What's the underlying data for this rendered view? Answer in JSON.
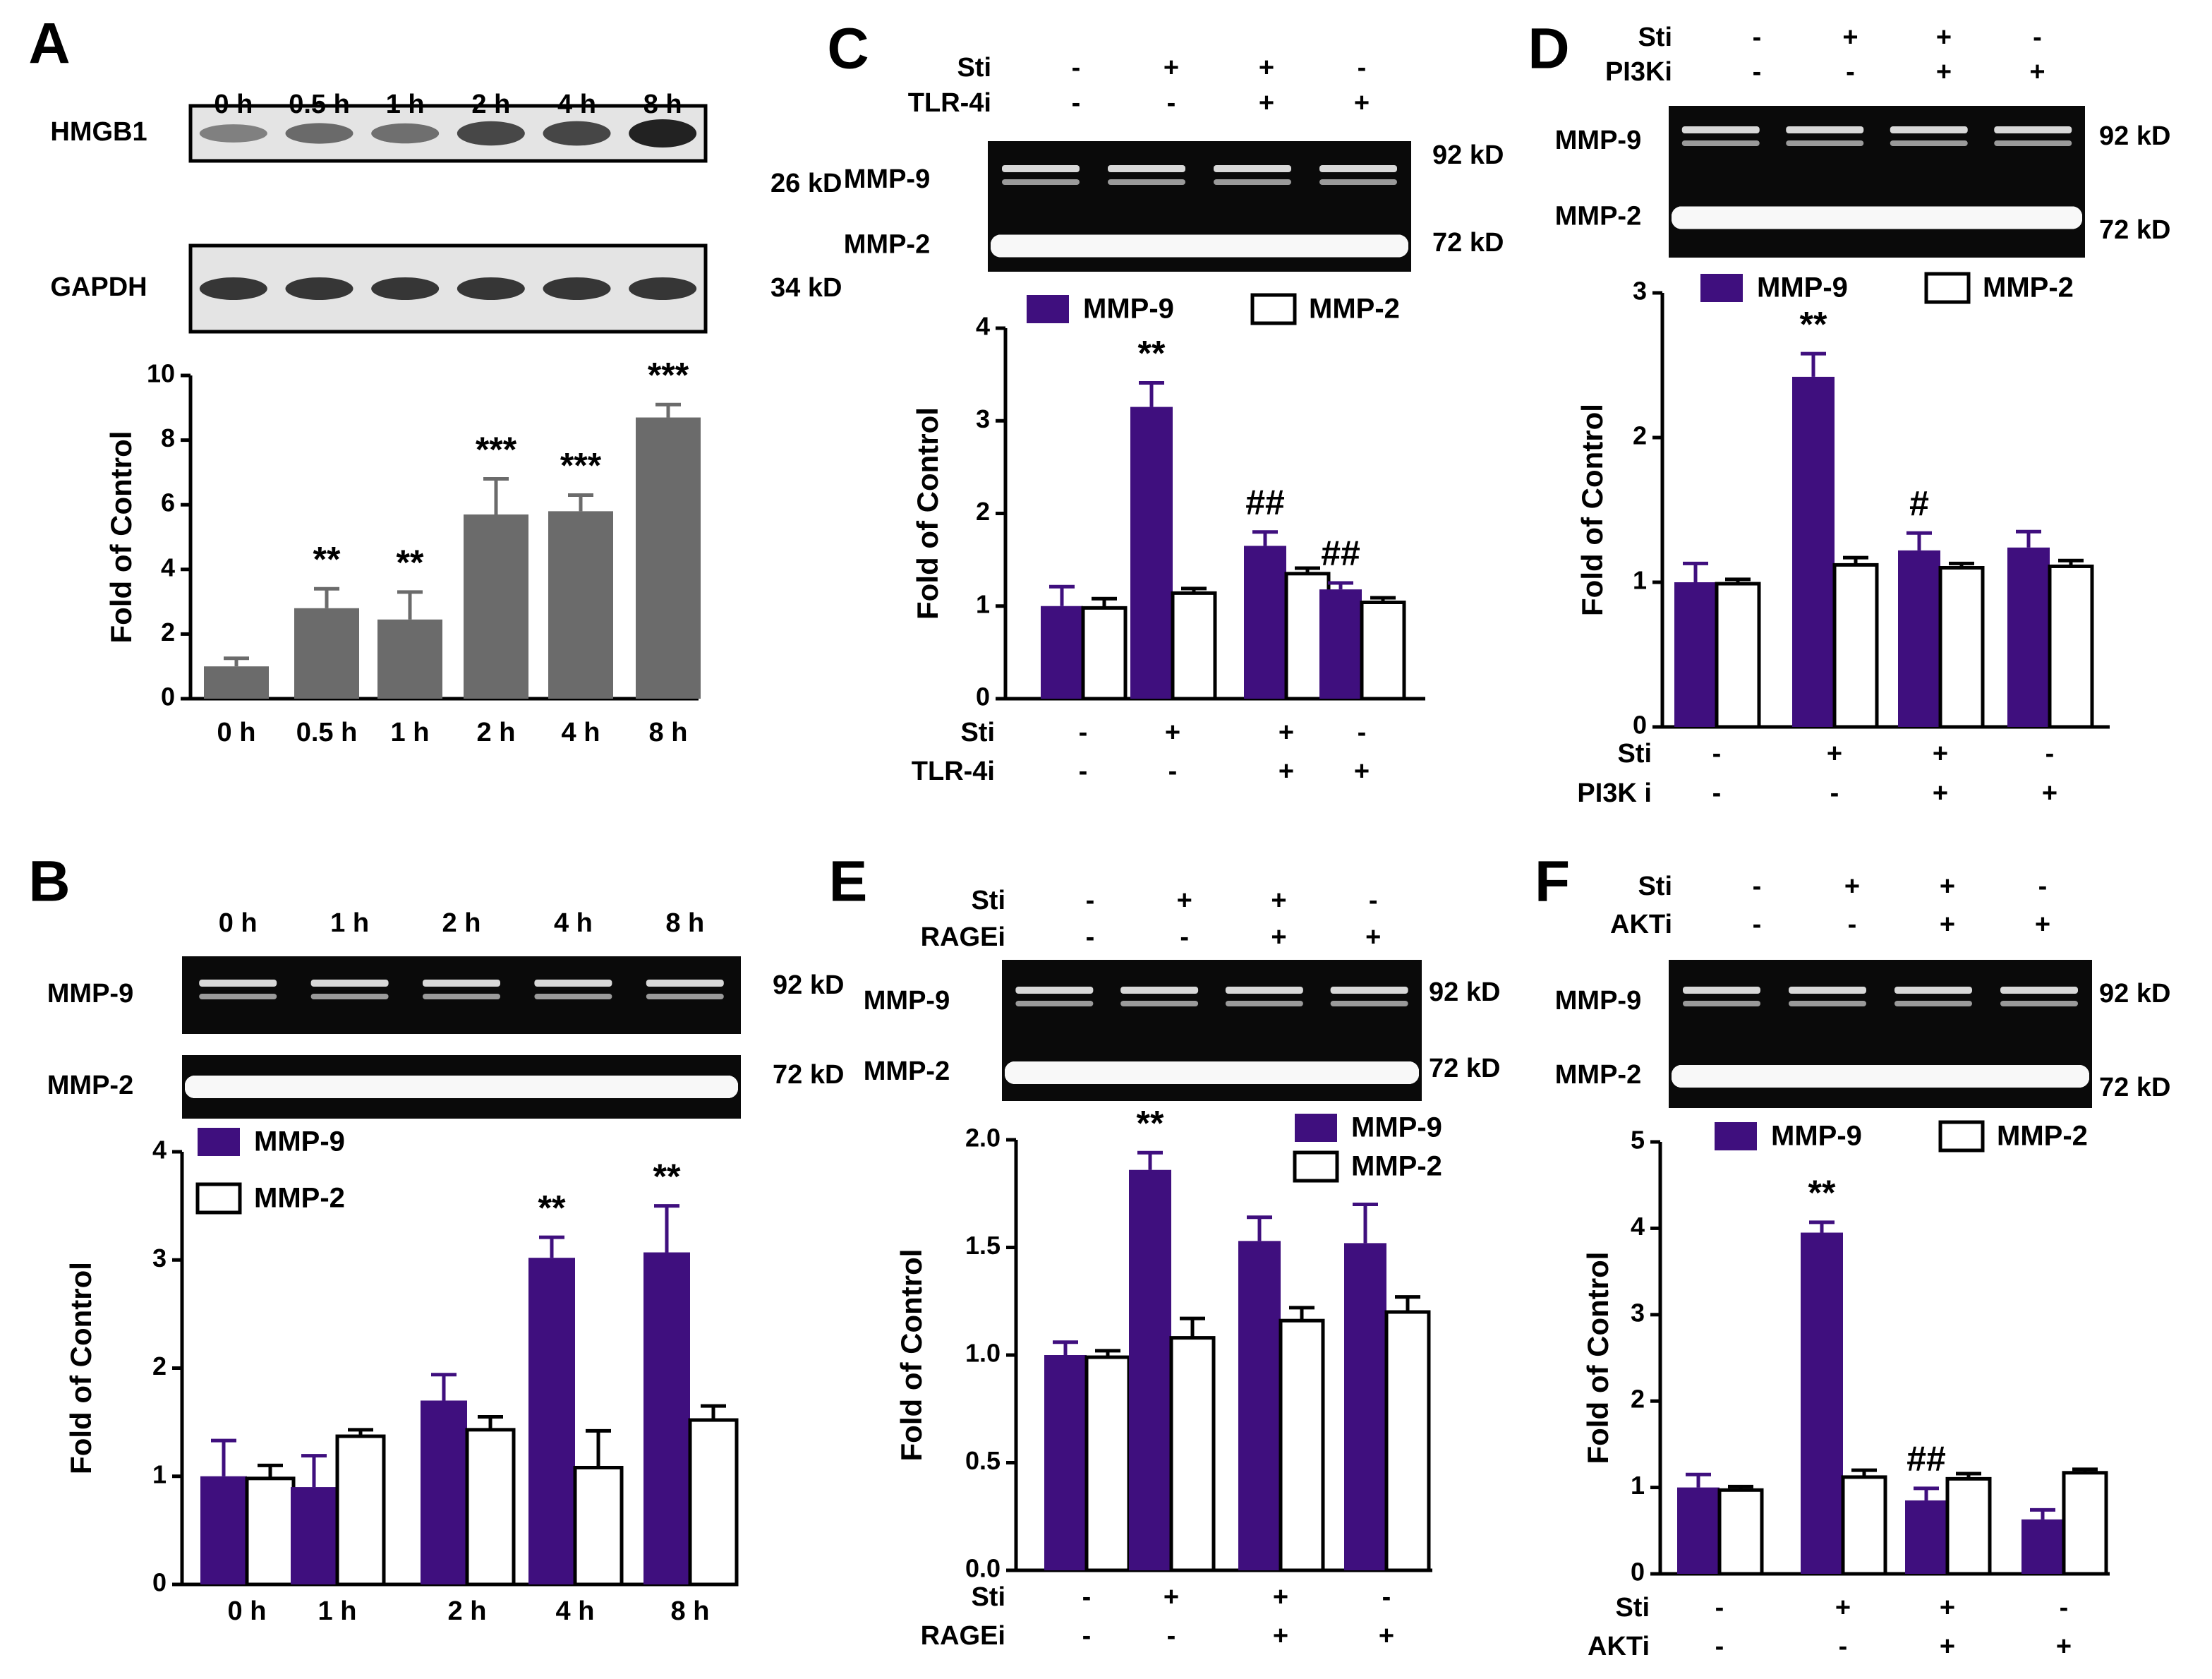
{
  "colors": {
    "mmp9": "#3f0f7e",
    "mmp2": "#ffffff",
    "hmgb1_bar": "#6b6b6b",
    "axis": "#000000"
  },
  "chart_data": [
    {
      "id": "A",
      "panel_label": "A",
      "type": "bar",
      "ylabel": "Fold of Control",
      "ylim": [
        0,
        10
      ],
      "yticks": [
        "0",
        "2",
        "4",
        "6",
        "8",
        "10"
      ],
      "categories": [
        "0 h",
        "0.5 h",
        "1 h",
        "2 h",
        "4 h",
        "8 h"
      ],
      "series": [
        {
          "values": [
            1.0,
            2.8,
            2.45,
            5.7,
            5.8,
            8.7
          ],
          "errors": [
            0.25,
            0.6,
            0.85,
            1.1,
            0.5,
            0.4
          ],
          "color": "hmgb1_bar"
        }
      ],
      "annotations": [
        "",
        "**",
        "**",
        "***",
        "***",
        "***"
      ],
      "blot": {
        "lanes": [
          "0 h",
          "0.5 h",
          "1 h",
          "2 h",
          "4 h",
          "8 h"
        ],
        "rows": [
          {
            "label": "HMGB1",
            "size": "26 kD"
          },
          {
            "label": "GAPDH",
            "size": "34 kD"
          }
        ]
      }
    },
    {
      "id": "B",
      "panel_label": "B",
      "type": "bar",
      "ylabel": "Fold of Control",
      "ylim": [
        0,
        4
      ],
      "yticks": [
        "0",
        "1",
        "2",
        "3",
        "4"
      ],
      "categories": [
        "0 h",
        "1 h",
        "2 h",
        "4 h",
        "8 h"
      ],
      "legend": [
        "MMP-9",
        "MMP-2"
      ],
      "series": [
        {
          "name": "MMP-9",
          "values": [
            1.0,
            0.9,
            1.7,
            3.02,
            3.07
          ],
          "errors": [
            0.33,
            0.29,
            0.24,
            0.19,
            0.43
          ]
        },
        {
          "name": "MMP-2",
          "values": [
            0.98,
            1.37,
            1.43,
            1.08,
            1.52
          ],
          "errors": [
            0.12,
            0.06,
            0.12,
            0.34,
            0.13
          ]
        }
      ],
      "annotations": [
        "",
        "",
        "",
        "**",
        "**"
      ],
      "blot": {
        "lanes": [
          "0 h",
          "1 h",
          "2 h",
          "4 h",
          "8 h"
        ],
        "rows": [
          {
            "label": "MMP-9",
            "size": "92 kD"
          },
          {
            "label": "MMP-2",
            "size": "72 kD"
          }
        ]
      }
    },
    {
      "id": "C",
      "panel_label": "C",
      "type": "bar",
      "ylabel": "Fold of Control",
      "ylim": [
        0,
        4
      ],
      "yticks": [
        "0",
        "1",
        "2",
        "3",
        "4"
      ],
      "condition_rows": [
        {
          "label": "Sti",
          "marks": [
            "-",
            "+",
            "+",
            "-"
          ]
        },
        {
          "label": "TLR-4i",
          "marks": [
            "-",
            "-",
            "+",
            "+"
          ]
        }
      ],
      "legend": [
        "MMP-9",
        "MMP-2"
      ],
      "series": [
        {
          "name": "MMP-9",
          "values": [
            1.0,
            3.15,
            1.65,
            1.18
          ],
          "errors": [
            0.21,
            0.26,
            0.15,
            0.07
          ]
        },
        {
          "name": "MMP-2",
          "values": [
            0.98,
            1.14,
            1.35,
            1.04
          ],
          "errors": [
            0.1,
            0.05,
            0.06,
            0.05
          ]
        }
      ],
      "annotations": [
        "",
        "**",
        "##",
        "##"
      ],
      "blot": {
        "condition_rows": [
          {
            "label": "Sti",
            "marks": [
              "-",
              "+",
              "+",
              "-"
            ]
          },
          {
            "label": "TLR-4i",
            "marks": [
              "-",
              "-",
              "+",
              "+"
            ]
          }
        ],
        "rows": [
          {
            "label": "MMP-9",
            "size": "92 kD"
          },
          {
            "label": "MMP-2",
            "size": "72 kD"
          }
        ]
      }
    },
    {
      "id": "D",
      "panel_label": "D",
      "type": "bar",
      "ylabel": "Fold of Control",
      "ylim": [
        0,
        3
      ],
      "yticks": [
        "0",
        "1",
        "2",
        "3"
      ],
      "condition_rows": [
        {
          "label": "Sti",
          "marks": [
            "-",
            "+",
            "+",
            "-"
          ]
        },
        {
          "label": "PI3K i",
          "marks": [
            "-",
            "-",
            "+",
            "+"
          ]
        }
      ],
      "legend": [
        "MMP-9",
        "MMP-2"
      ],
      "series": [
        {
          "name": "MMP-9",
          "values": [
            1.0,
            2.42,
            1.22,
            1.24
          ],
          "errors": [
            0.13,
            0.16,
            0.12,
            0.11
          ]
        },
        {
          "name": "MMP-2",
          "values": [
            0.99,
            1.12,
            1.1,
            1.11
          ],
          "errors": [
            0.03,
            0.05,
            0.03,
            0.04
          ]
        }
      ],
      "annotations": [
        "",
        "**",
        "#",
        ""
      ],
      "blot": {
        "condition_rows": [
          {
            "label": "Sti",
            "marks": [
              "-",
              "+",
              "+",
              "-"
            ]
          },
          {
            "label": "PI3Ki",
            "marks": [
              "-",
              "-",
              "+",
              "+"
            ]
          }
        ],
        "rows": [
          {
            "label": "MMP-9",
            "size": "92 kD"
          },
          {
            "label": "MMP-2",
            "size": "72 kD"
          }
        ]
      }
    },
    {
      "id": "E",
      "panel_label": "E",
      "type": "bar",
      "ylabel": "Fold of Control",
      "ylim": [
        0,
        2
      ],
      "yticks": [
        "0.0",
        "0.5",
        "1.0",
        "1.5",
        "2.0"
      ],
      "condition_rows": [
        {
          "label": "Sti",
          "marks": [
            "-",
            "+",
            "+",
            "-"
          ]
        },
        {
          "label": "RAGEi",
          "marks": [
            "-",
            "-",
            "+",
            "+"
          ]
        }
      ],
      "legend": [
        "MMP-9",
        "MMP-2"
      ],
      "series": [
        {
          "name": "MMP-9",
          "values": [
            1.0,
            1.86,
            1.53,
            1.52
          ],
          "errors": [
            0.06,
            0.08,
            0.11,
            0.18
          ]
        },
        {
          "name": "MMP-2",
          "values": [
            0.99,
            1.08,
            1.16,
            1.2
          ],
          "errors": [
            0.03,
            0.09,
            0.06,
            0.07
          ]
        }
      ],
      "annotations": [
        "",
        "**",
        "",
        ""
      ],
      "blot": {
        "condition_rows": [
          {
            "label": "Sti",
            "marks": [
              "-",
              "+",
              "+",
              "-"
            ]
          },
          {
            "label": "RAGEi",
            "marks": [
              "-",
              "-",
              "+",
              "+"
            ]
          }
        ],
        "rows": [
          {
            "label": "MMP-9",
            "size": "92 kD"
          },
          {
            "label": "MMP-2",
            "size": "72 kD"
          }
        ]
      }
    },
    {
      "id": "F",
      "panel_label": "F",
      "type": "bar",
      "ylabel": "Fold of Control",
      "ylim": [
        0,
        5
      ],
      "yticks": [
        "0",
        "1",
        "2",
        "3",
        "4",
        "5"
      ],
      "condition_rows": [
        {
          "label": "Sti",
          "marks": [
            "-",
            "+",
            "+",
            "-"
          ]
        },
        {
          "label": "AKTi",
          "marks": [
            "-",
            "-",
            "+",
            "+"
          ]
        }
      ],
      "legend": [
        "MMP-9",
        "MMP-2"
      ],
      "series": [
        {
          "name": "MMP-9",
          "values": [
            1.0,
            3.95,
            0.85,
            0.63
          ],
          "errors": [
            0.15,
            0.12,
            0.14,
            0.11
          ]
        },
        {
          "name": "MMP-2",
          "values": [
            0.97,
            1.12,
            1.1,
            1.17
          ],
          "errors": [
            0.04,
            0.08,
            0.06,
            0.04
          ]
        }
      ],
      "annotations": [
        "",
        "**",
        "##",
        ""
      ],
      "blot": {
        "condition_rows": [
          {
            "label": "Sti",
            "marks": [
              "-",
              "+",
              "+",
              "-"
            ]
          },
          {
            "label": "AKTi",
            "marks": [
              "-",
              "-",
              "+",
              "+"
            ]
          }
        ],
        "rows": [
          {
            "label": "MMP-9",
            "size": "92 kD"
          },
          {
            "label": "MMP-2",
            "size": "72 kD"
          }
        ]
      }
    }
  ]
}
